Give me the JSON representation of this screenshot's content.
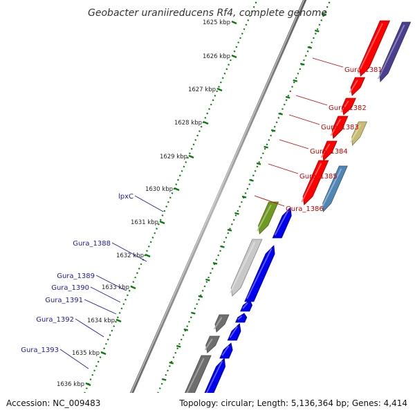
{
  "title": "Geobacter uraniireducens Rf4, complete genome",
  "accession_text": "Accession: NC_009483",
  "topology_text": "Topology: circular; Length: 5,136,364 bp; Genes: 4,414",
  "kbp_ticks": [
    {
      "label": "1625 kbp",
      "kbp": 1625
    },
    {
      "label": "1626 kbp",
      "kbp": 1626
    },
    {
      "label": "1627 kbp",
      "kbp": 1627
    },
    {
      "label": "1628 kbp",
      "kbp": 1628
    },
    {
      "label": "1629 kbp",
      "kbp": 1629
    },
    {
      "label": "1630 kbp",
      "kbp": 1630
    },
    {
      "label": "1631 kbp",
      "kbp": 1631
    },
    {
      "label": "1632 kbp",
      "kbp": 1632
    },
    {
      "label": "1633 kbp",
      "kbp": 1633
    },
    {
      "label": "1634 kbp",
      "kbp": 1634
    },
    {
      "label": "1635 kbp",
      "kbp": 1635
    },
    {
      "label": "1636 kbp",
      "kbp": 1636
    }
  ],
  "genes_right": [
    {
      "name": "Gura_1381",
      "color": "#4a3f8f"
    },
    {
      "name": "Gura_1382",
      "color": "#ff0000"
    },
    {
      "name": "Gura_1383",
      "color": "#ff0000"
    },
    {
      "name": "Gura_1384",
      "color": "#c8bc74"
    },
    {
      "name": "Gura_1385",
      "color": "#ff0000"
    },
    {
      "name": "Gura_1386",
      "color": "#4f86b4"
    }
  ],
  "genes_left": [
    {
      "name": "lpxC",
      "color": "#6f9a22"
    },
    {
      "name": "Gura_1388",
      "color": "#c8c8c8"
    },
    {
      "name": "Gura_1389",
      "color": "#0000ee"
    },
    {
      "name": "Gura_1390",
      "color": "#0000ee"
    },
    {
      "name": "Gura_1391",
      "color": "#0000ee"
    },
    {
      "name": "Gura_1392",
      "color": "#6e6e6e"
    },
    {
      "name": "Gura_1393",
      "color": "#6e6e6e"
    }
  ],
  "colors": {
    "forward_cds": "#ff0000",
    "reverse_cds": "#0000ee",
    "gc_skew": "#0a7a0a",
    "backbone": "#8c8c8c",
    "label_right": "#cc0000",
    "label_left": "#1a1aa6"
  }
}
